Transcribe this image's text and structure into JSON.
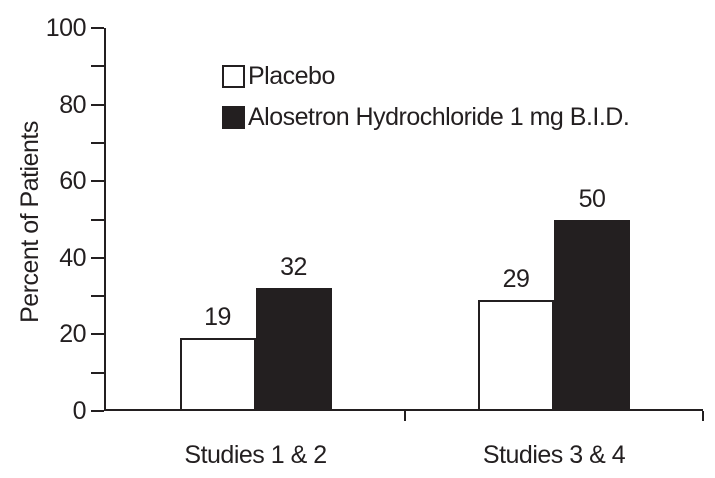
{
  "figure": {
    "background": "#ffffff",
    "ink_color": "#231f20"
  },
  "chart_data": {
    "type": "bar",
    "title": "",
    "categories": [
      "Studies 1 & 2",
      "Studies 3 & 4"
    ],
    "series": [
      {
        "name": "Placebo",
        "values": [
          19,
          29
        ],
        "fill": "#ffffff",
        "stroke": "#231f20"
      },
      {
        "name": "Alosetron Hydrochloride 1 mg B.I.D.",
        "values": [
          32,
          50
        ],
        "fill": "#231f20",
        "stroke": "#231f20"
      }
    ],
    "xlabel": "",
    "ylabel": "Percent of Patients",
    "ylim": [
      0,
      100
    ],
    "y_major_ticks": [
      0,
      20,
      40,
      60,
      80,
      100
    ],
    "y_minor_ticks": [
      10,
      30,
      50,
      70,
      90
    ],
    "bar_value_labels_shown": true,
    "grid": false,
    "legend_position": "top-center"
  }
}
